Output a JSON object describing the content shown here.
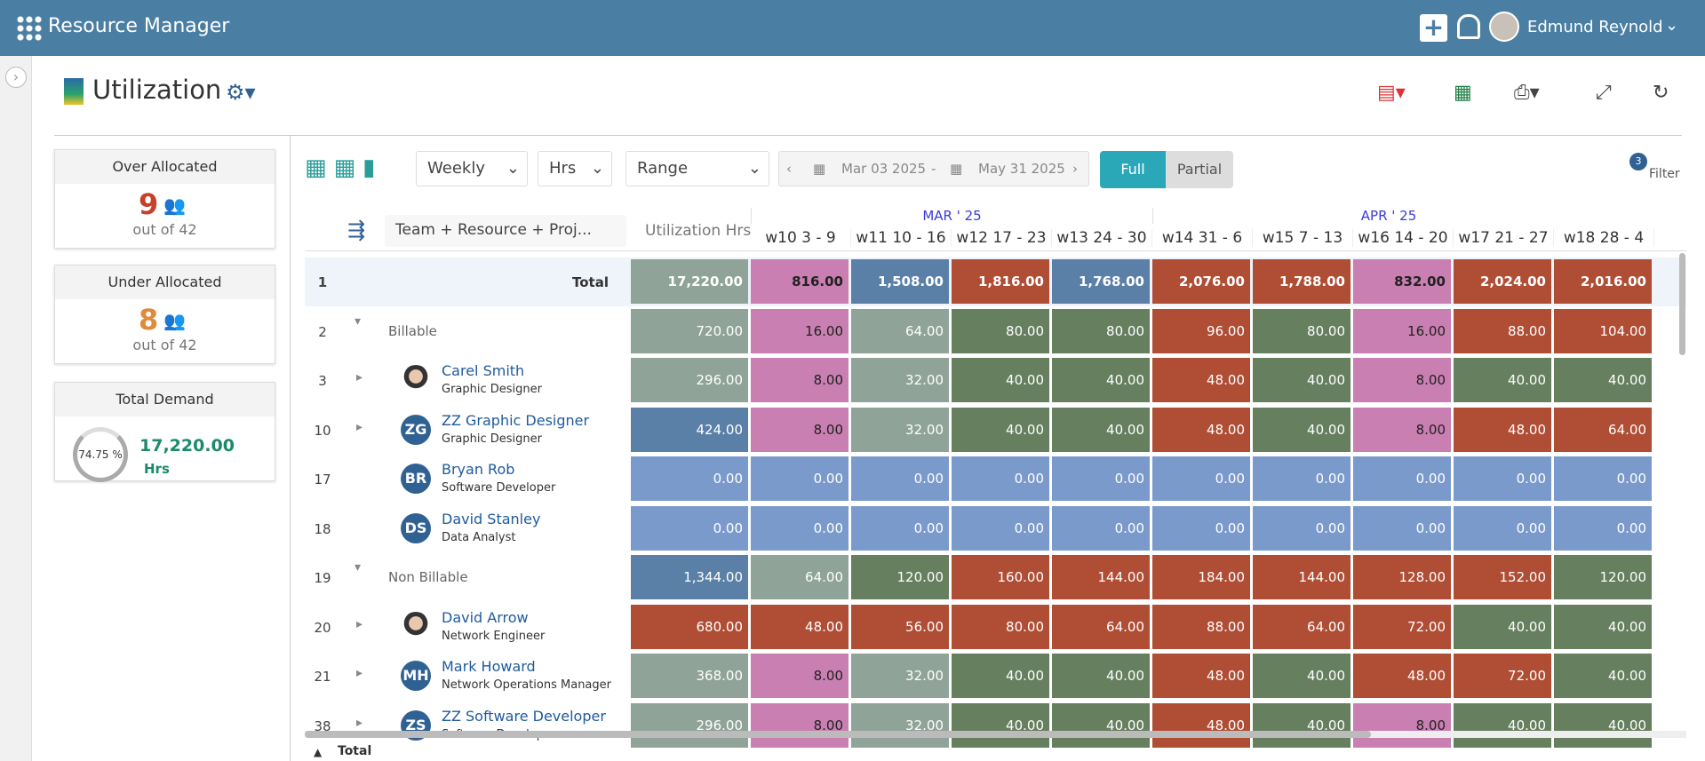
{
  "header": {
    "app_title": "Resource Manager",
    "user_name": "Edmund Reynold"
  },
  "page": {
    "title": "Utilization"
  },
  "cards": [
    {
      "title": "Over Allocated",
      "count": "9",
      "sub": "out of 42",
      "color": "#c8402a"
    },
    {
      "title": "Under Allocated",
      "count": "8",
      "sub": "out of 42",
      "color": "#e08a3c"
    }
  ],
  "demand": {
    "title": "Total Demand",
    "percent": "74.75 %",
    "value": "17,220.00",
    "unit": "Hrs"
  },
  "toolbar": {
    "period": "Weekly",
    "unit": "Hrs",
    "range": "Range",
    "start": "Mar 03 2025",
    "dash": "-",
    "end": "May 31 2025",
    "full": "Full",
    "partial": "Partial",
    "filter_count": "3",
    "filter": "Filter"
  },
  "grid": {
    "group_by": "Team + Resource + Proj...",
    "util_header": "Utilization Hrs",
    "months": [
      "MAR ' 25",
      "APR ' 25"
    ],
    "weeks": [
      "w10 3 - 9",
      "w11 10 - 16",
      "w12 17 - 23",
      "w13 24 - 30",
      "w14 31 - 6",
      "w15 7 - 13",
      "w16 14 - 20",
      "w17 21 - 27",
      "w18 28 - 4"
    ],
    "rows": [
      {
        "num": "1",
        "label": "Total",
        "total": "17,220.00",
        "cells": [
          "816.00",
          "1,508.00",
          "1,816.00",
          "1,768.00",
          "2,076.00",
          "1,788.00",
          "832.00",
          "2,024.00",
          "2,016.00"
        ],
        "colors": [
          "#8fa398",
          "#c97fb2",
          "#5b80a8",
          "#b04d35",
          "#5b80a8",
          "#b04d35",
          "#b04d35",
          "#c97fb2",
          "#b04d35",
          "#b04d35"
        ]
      },
      {
        "num": "2",
        "label": "Billable",
        "total": "720.00",
        "cells": [
          "16.00",
          "64.00",
          "80.00",
          "80.00",
          "96.00",
          "80.00",
          "16.00",
          "88.00",
          "104.00"
        ],
        "colors": [
          "#8fa398",
          "#c97fb2",
          "#8fa398",
          "#667f5f",
          "#667f5f",
          "#b04d35",
          "#667f5f",
          "#c97fb2",
          "#b04d35",
          "#b04d35"
        ]
      },
      {
        "num": "3",
        "label": "Carel Smith",
        "role": "Graphic Designer",
        "total": "296.00",
        "cells": [
          "8.00",
          "32.00",
          "40.00",
          "40.00",
          "48.00",
          "40.00",
          "8.00",
          "40.00",
          "40.00"
        ],
        "colors": [
          "#8fa398",
          "#c97fb2",
          "#8fa398",
          "#667f5f",
          "#667f5f",
          "#b04d35",
          "#667f5f",
          "#c97fb2",
          "#667f5f",
          "#667f5f"
        ]
      },
      {
        "num": "10",
        "label": "ZZ Graphic Designer",
        "role": "Graphic Designer",
        "initials": "ZG",
        "total": "424.00",
        "cells": [
          "8.00",
          "32.00",
          "40.00",
          "40.00",
          "48.00",
          "40.00",
          "8.00",
          "48.00",
          "64.00"
        ],
        "colors": [
          "#5b80a8",
          "#c97fb2",
          "#8fa398",
          "#667f5f",
          "#667f5f",
          "#b04d35",
          "#667f5f",
          "#c97fb2",
          "#b04d35",
          "#b04d35"
        ]
      },
      {
        "num": "17",
        "label": "Bryan Rob",
        "role": "Software Developer",
        "initials": "BR",
        "total": "0.00",
        "cells": [
          "0.00",
          "0.00",
          "0.00",
          "0.00",
          "0.00",
          "0.00",
          "0.00",
          "0.00",
          "0.00"
        ],
        "colors": [
          "#7b9acc",
          "#7b9acc",
          "#7b9acc",
          "#7b9acc",
          "#7b9acc",
          "#7b9acc",
          "#7b9acc",
          "#7b9acc",
          "#7b9acc",
          "#7b9acc"
        ]
      },
      {
        "num": "18",
        "label": "David Stanley",
        "role": "Data Analyst",
        "initials": "DS",
        "total": "0.00",
        "cells": [
          "0.00",
          "0.00",
          "0.00",
          "0.00",
          "0.00",
          "0.00",
          "0.00",
          "0.00",
          "0.00"
        ],
        "colors": [
          "#7b9acc",
          "#7b9acc",
          "#7b9acc",
          "#7b9acc",
          "#7b9acc",
          "#7b9acc",
          "#7b9acc",
          "#7b9acc",
          "#7b9acc",
          "#7b9acc"
        ]
      },
      {
        "num": "19",
        "label": "Non Billable",
        "total": "1,344.00",
        "cells": [
          "64.00",
          "120.00",
          "160.00",
          "144.00",
          "184.00",
          "144.00",
          "128.00",
          "152.00",
          "120.00"
        ],
        "colors": [
          "#5b80a8",
          "#8fa398",
          "#667f5f",
          "#b04d35",
          "#b04d35",
          "#b04d35",
          "#b04d35",
          "#b04d35",
          "#b04d35",
          "#667f5f"
        ]
      },
      {
        "num": "20",
        "label": "David Arrow",
        "role": "Network Engineer",
        "total": "680.00",
        "cells": [
          "48.00",
          "56.00",
          "80.00",
          "64.00",
          "88.00",
          "64.00",
          "72.00",
          "40.00",
          "40.00"
        ],
        "colors": [
          "#b04d35",
          "#b04d35",
          "#b04d35",
          "#b04d35",
          "#b04d35",
          "#b04d35",
          "#b04d35",
          "#b04d35",
          "#667f5f",
          "#667f5f"
        ]
      },
      {
        "num": "21",
        "label": "Mark Howard",
        "role": "Network Operations Manager",
        "initials": "MH",
        "total": "368.00",
        "cells": [
          "8.00",
          "32.00",
          "40.00",
          "40.00",
          "48.00",
          "40.00",
          "48.00",
          "72.00",
          "40.00"
        ],
        "colors": [
          "#8fa398",
          "#c97fb2",
          "#8fa398",
          "#667f5f",
          "#667f5f",
          "#b04d35",
          "#667f5f",
          "#b04d35",
          "#b04d35",
          "#667f5f"
        ]
      },
      {
        "num": "38",
        "label": "ZZ Software Developer",
        "role": "Software Developer",
        "initials": "ZS",
        "total": "296.00",
        "cells": [
          "8.00",
          "32.00",
          "40.00",
          "40.00",
          "48.00",
          "40.00",
          "8.00",
          "40.00",
          "40.00"
        ],
        "colors": [
          "#8fa398",
          "#c97fb2",
          "#8fa398",
          "#667f5f",
          "#667f5f",
          "#b04d35",
          "#667f5f",
          "#c97fb2",
          "#667f5f",
          "#667f5f"
        ]
      }
    ],
    "footer": "Total"
  }
}
